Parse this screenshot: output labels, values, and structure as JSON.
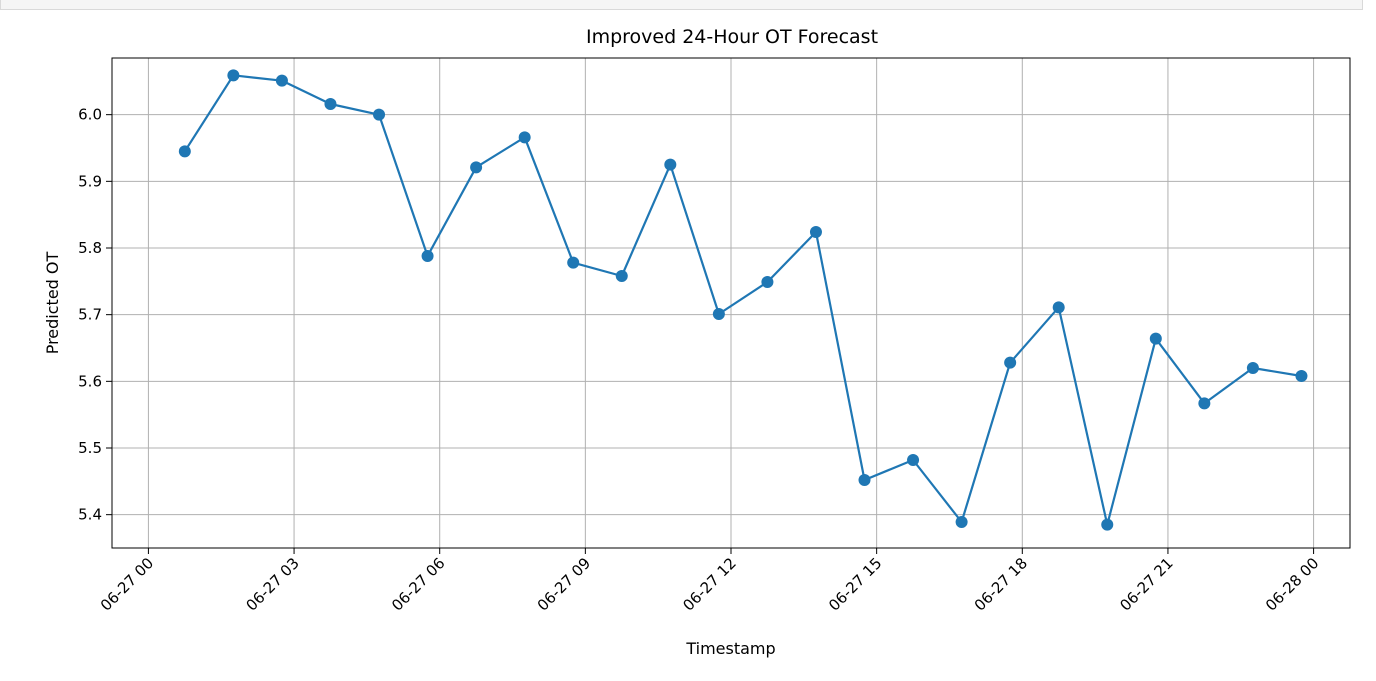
{
  "chart_data": {
    "type": "line",
    "title": "Improved 24-Hour OT Forecast",
    "xlabel": "Timestamp",
    "ylabel": "Predicted OT",
    "x_ticks": [
      "06-27 00",
      "06-27 03",
      "06-27 06",
      "06-27 09",
      "06-27 12",
      "06-27 15",
      "06-27 18",
      "06-27 21",
      "06-28 00"
    ],
    "y_ticks": [
      "5.4",
      "5.5",
      "5.6",
      "5.7",
      "5.8",
      "5.9",
      "6.0"
    ],
    "ylim": [
      5.35,
      6.085
    ],
    "xlim": [
      "2024-06-26 23:15",
      "2024-06-28 00:45"
    ],
    "grid": true,
    "series": [
      {
        "color": "#1f77b4",
        "marker": "circle",
        "points": [
          {
            "x": "2024-06-27 00:45",
            "y": 5.945
          },
          {
            "x": "2024-06-27 01:45",
            "y": 6.059
          },
          {
            "x": "2024-06-27 02:45",
            "y": 6.051
          },
          {
            "x": "2024-06-27 03:45",
            "y": 6.016
          },
          {
            "x": "2024-06-27 04:45",
            "y": 6.0
          },
          {
            "x": "2024-06-27 05:45",
            "y": 5.788
          },
          {
            "x": "2024-06-27 06:45",
            "y": 5.921
          },
          {
            "x": "2024-06-27 07:45",
            "y": 5.966
          },
          {
            "x": "2024-06-27 08:45",
            "y": 5.778
          },
          {
            "x": "2024-06-27 09:45",
            "y": 5.758
          },
          {
            "x": "2024-06-27 10:45",
            "y": 5.925
          },
          {
            "x": "2024-06-27 11:45",
            "y": 5.701
          },
          {
            "x": "2024-06-27 12:45",
            "y": 5.749
          },
          {
            "x": "2024-06-27 13:45",
            "y": 5.824
          },
          {
            "x": "2024-06-27 14:45",
            "y": 5.452
          },
          {
            "x": "2024-06-27 15:45",
            "y": 5.482
          },
          {
            "x": "2024-06-27 16:45",
            "y": 5.389
          },
          {
            "x": "2024-06-27 17:45",
            "y": 5.628
          },
          {
            "x": "2024-06-27 18:45",
            "y": 5.711
          },
          {
            "x": "2024-06-27 19:45",
            "y": 5.385
          },
          {
            "x": "2024-06-27 20:45",
            "y": 5.664
          },
          {
            "x": "2024-06-27 21:45",
            "y": 5.567
          },
          {
            "x": "2024-06-27 22:45",
            "y": 5.62
          },
          {
            "x": "2024-06-27 23:45",
            "y": 5.608
          }
        ]
      }
    ]
  }
}
